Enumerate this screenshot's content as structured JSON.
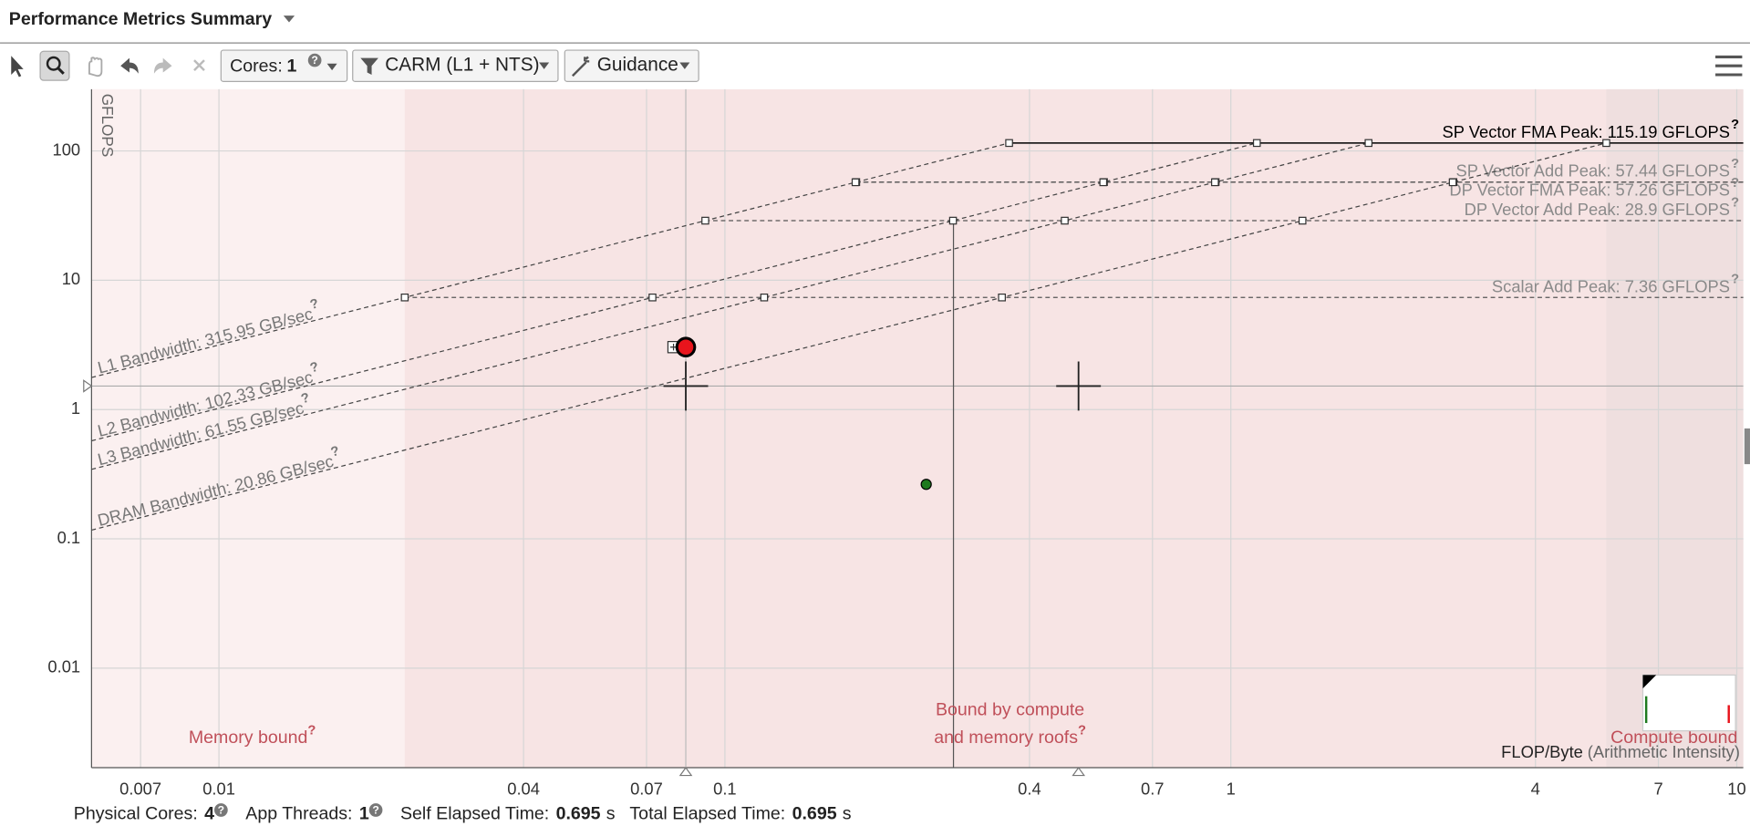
{
  "header": {
    "title": "Performance Metrics Summary"
  },
  "toolbar": {
    "cores_label": "Cores:",
    "cores_value": "1",
    "filter": "CARM (L1 + NTS)",
    "guidance": "Guidance"
  },
  "help_mark": "?",
  "chart_data": {
    "type": "roofline",
    "y_label": "GFLOPS",
    "x_label": "FLOP/Byte",
    "x_label_note": "(Arithmetic Intensity)",
    "xscale": "log",
    "yscale": "log",
    "grid": true,
    "xlim": [
      0.0056,
      10.3
    ],
    "ylim": [
      0.0017,
      300
    ],
    "xticks": [
      0.007,
      0.01,
      0.04,
      0.07,
      0.1,
      0.4,
      0.7,
      1,
      4,
      7,
      10
    ],
    "yticks": [
      0.01,
      0.1,
      1,
      10,
      100
    ],
    "compute_roofs": [
      {
        "label": "SP Vector FMA Peak: 115.19 GFLOPS",
        "value": 115.19,
        "color": "#000000"
      },
      {
        "label": "SP Vector Add Peak: 57.44 GFLOPS",
        "value": 57.44,
        "color": "#8a8a8a"
      },
      {
        "label": "DP Vector FMA Peak: 57.26 GFLOPS",
        "value": 57.26,
        "color": "#8a8a8a"
      },
      {
        "label": "DP Vector Add Peak: 28.9 GFLOPS",
        "value": 28.9,
        "color": "#8a8a8a"
      },
      {
        "label": "Scalar Add Peak: 7.36 GFLOPS",
        "value": 7.36,
        "color": "#8a8a8a"
      }
    ],
    "memory_roofs": [
      {
        "label": "L1 Bandwidth: 315.95 GB/sec",
        "value": 315.95
      },
      {
        "label": "L2 Bandwidth: 102.33 GB/sec",
        "value": 102.33
      },
      {
        "label": "L3 Bandwidth: 61.55 GB/sec",
        "value": 61.55
      },
      {
        "label": "DRAM Bandwidth: 20.86 GB/sec",
        "value": 20.86
      }
    ],
    "points": [
      {
        "x": 0.0837,
        "y": 3.04,
        "color": "#e8141c"
      },
      {
        "x": 0.25,
        "y": 0.264,
        "color": "#1e7a1e"
      }
    ],
    "selected": 0,
    "crosshair": {
      "y": 1.52,
      "x": [
        0.0837,
        0.5
      ]
    },
    "ridge_marker": {
      "x": 0.283,
      "y": 28.9
    },
    "regions": {
      "memory": "Memory bound",
      "mixed": [
        "Bound by compute",
        "and memory roofs"
      ],
      "compute": "Compute bound"
    }
  },
  "footer": [
    {
      "label": "Physical Cores:",
      "value": "4",
      "help": true
    },
    {
      "label": "App Threads:",
      "value": "1",
      "help": true
    },
    {
      "label": "Self Elapsed Time:",
      "value": "0.695",
      "unit": "s"
    },
    {
      "label": "Total Elapsed Time:",
      "value": "0.695",
      "unit": "s"
    }
  ]
}
